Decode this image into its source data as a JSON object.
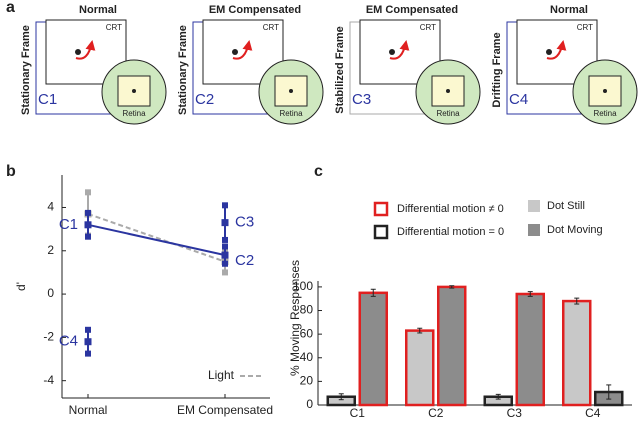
{
  "panel_labels": [
    "a",
    "b",
    "c"
  ],
  "diagram": {
    "panels": [
      {
        "title": "Normal",
        "frame": "Stationary Frame",
        "screen": "CRT",
        "condition": "C1",
        "eye": "Retina"
      },
      {
        "title": "EM Compensated",
        "frame": "Stationary Frame",
        "screen": "CRT",
        "condition": "C2",
        "eye": "Retina"
      },
      {
        "title": "EM Compensated",
        "frame": "Stabilized Frame",
        "screen": "CRT",
        "condition": "C3",
        "eye": "Retina"
      },
      {
        "title": "Normal",
        "frame": "Drifting Frame",
        "screen": "CRT",
        "condition": "C4",
        "eye": "Retina"
      }
    ]
  },
  "chart_data": [
    {
      "type": "line",
      "ylabel": "d'",
      "categories": [
        "Normal",
        "EM Compensated"
      ],
      "ylim": [
        -4.8,
        5.5
      ],
      "yticks": [
        -4,
        -2,
        0,
        2,
        4
      ],
      "legend": "lower right",
      "series": [
        {
          "name": "Light",
          "color": "#aaaaaa",
          "dashed": true,
          "values": [
            3.7,
            1.5
          ],
          "errors": [
            1.0,
            0.5
          ]
        },
        {
          "color": "#2b35a0",
          "labels": [
            "C1",
            "C2"
          ],
          "values": [
            3.2,
            1.8
          ],
          "errors": [
            0.55,
            0.4
          ]
        },
        {
          "color": "#2b35a0",
          "labels": [
            null,
            "C3"
          ],
          "values": [
            null,
            3.3
          ],
          "errors": [
            null,
            0.8
          ]
        },
        {
          "color": "#2b35a0",
          "labels": [
            "C4",
            null
          ],
          "values": [
            -2.2,
            null
          ],
          "errors": [
            0.55,
            null
          ]
        }
      ]
    },
    {
      "type": "bar",
      "ylabel": "% Moving Responses",
      "categories": [
        "C1",
        "C2",
        "C3",
        "C4"
      ],
      "ylim": [
        0,
        105
      ],
      "yticks": [
        0,
        20,
        40,
        60,
        80,
        100
      ],
      "series": [
        {
          "name": "Dot Still",
          "color": "#c8c8c8",
          "values": [
            7,
            63,
            7,
            88
          ],
          "errors": [
            2.5,
            2,
            2,
            2.5
          ],
          "edges": [
            "#222222",
            "#e02020",
            "#222222",
            "#e02020"
          ]
        },
        {
          "name": "Dot Moving",
          "color": "#8c8c8c",
          "values": [
            95,
            100,
            94,
            11
          ],
          "errors": [
            3,
            1,
            2,
            6
          ],
          "edges": [
            "#e02020",
            "#e02020",
            "#e02020",
            "#222222"
          ]
        }
      ],
      "edge_legend": [
        {
          "label": "Differential motion ≠ 0",
          "color": "#e02020"
        },
        {
          "label": "Differential motion = 0",
          "color": "#222222"
        }
      ]
    }
  ]
}
